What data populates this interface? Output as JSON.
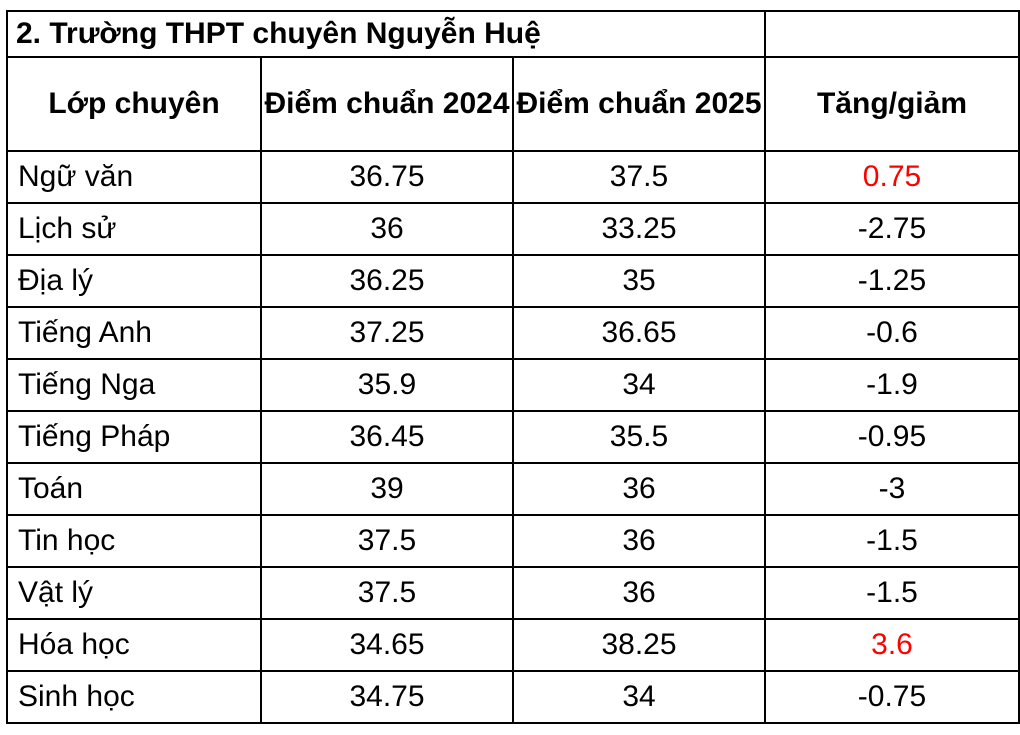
{
  "title": "2. Trường THPT chuyên Nguyễn Huệ",
  "headers": {
    "class": "Lớp chuyên",
    "score2024": "Điểm chuẩn 2024",
    "score2025": "Điểm chuẩn 2025",
    "change": "Tăng/giảm"
  },
  "rows": [
    {
      "name": "Ngữ văn",
      "y2024": "36.75",
      "y2025": "37.5",
      "change": "0.75"
    },
    {
      "name": "Lịch sử",
      "y2024": "36",
      "y2025": "33.25",
      "change": "-2.75"
    },
    {
      "name": "Địa lý",
      "y2024": "36.25",
      "y2025": "35",
      "change": "-1.25"
    },
    {
      "name": "Tiếng Anh",
      "y2024": "37.25",
      "y2025": "36.65",
      "change": "-0.6"
    },
    {
      "name": "Tiếng Nga",
      "y2024": "35.9",
      "y2025": "34",
      "change": "-1.9"
    },
    {
      "name": "Tiếng Pháp",
      "y2024": "36.45",
      "y2025": "35.5",
      "change": "-0.95"
    },
    {
      "name": "Toán",
      "y2024": "39",
      "y2025": "36",
      "change": "-3"
    },
    {
      "name": "Tin học",
      "y2024": "37.5",
      "y2025": "36",
      "change": "-1.5"
    },
    {
      "name": "Vật lý",
      "y2024": "37.5",
      "y2025": "36",
      "change": "-1.5"
    },
    {
      "name": "Hóa học",
      "y2024": "34.65",
      "y2025": "38.25",
      "change": "3.6"
    },
    {
      "name": "Sinh học",
      "y2024": "34.75",
      "y2025": "34",
      "change": "-0.75"
    }
  ],
  "colors": {
    "positive_change": "#ff0000",
    "border": "#000000"
  }
}
